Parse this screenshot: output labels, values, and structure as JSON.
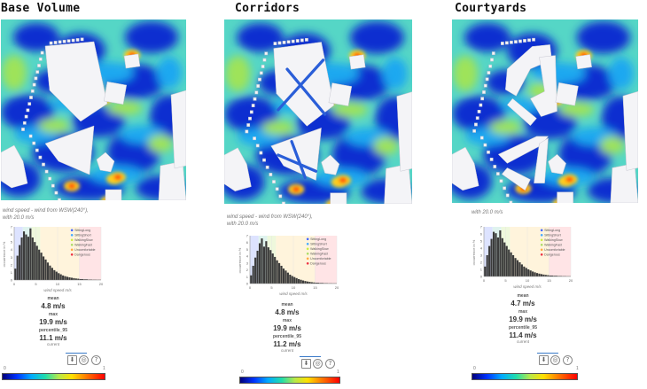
{
  "panels": [
    {
      "title": "Base Volume",
      "caption_line1": "wind speed - wind from WSW(240°),",
      "caption_line2": "with 20.0 m/s",
      "mean_label": "mean",
      "mean_value": "4.8 m/s",
      "max_label": "max",
      "max_value": "19.9 m/s",
      "pct_label": "percentile_95",
      "pct_value": "11.1 m/s",
      "pct_sub": "current",
      "cbar_min": "0",
      "cbar_max": "1"
    },
    {
      "title": "Corridors",
      "caption_line1": "wind speed - wind from WSW(240°),",
      "caption_line2": "with 20.0 m/s",
      "mean_label": "mean",
      "mean_value": "4.8 m/s",
      "max_label": "max",
      "max_value": "19.9 m/s",
      "pct_label": "percentile_95",
      "pct_value": "11.2 m/s",
      "pct_sub": "current",
      "cbar_min": "0",
      "cbar_max": "1"
    },
    {
      "title": "Courtyards",
      "caption_line1": "with 20.0 m/s",
      "caption_line2": "",
      "mean_label": "mean",
      "mean_value": "4.7 m/s",
      "max_label": "max",
      "max_value": "19.9 m/s",
      "pct_label": "percentile_95",
      "pct_value": "11.4 m/s",
      "pct_sub": "current",
      "cbar_min": "0",
      "cbar_max": "1"
    }
  ],
  "histogram": {
    "ylabel": "occurrence in %",
    "xlabel": "wind speed m/s",
    "xticks": [
      "0",
      "5",
      "10",
      "15",
      "20"
    ],
    "yticks": [
      "0",
      "1",
      "2",
      "3",
      "4",
      "5",
      "6",
      "7"
    ],
    "legend": [
      {
        "label": "SittingLong",
        "color": "#4466ff"
      },
      {
        "label": "SittingShort",
        "color": "#44aaff"
      },
      {
        "label": "WalkingSlow",
        "color": "#ccee44"
      },
      {
        "label": "WalkingFast",
        "color": "#aadd66"
      },
      {
        "label": "Uncomfortable",
        "color": "#ffaa44"
      },
      {
        "label": "Dangerous",
        "color": "#ee3344"
      }
    ]
  },
  "chart_data": [
    {
      "type": "bar",
      "title": "",
      "xlabel": "wind speed m/s",
      "ylabel": "occurrence in %",
      "xlim": [
        0,
        20
      ],
      "ylim": [
        0,
        7
      ],
      "x": [
        0.25,
        0.75,
        1.25,
        1.75,
        2.25,
        2.75,
        3.25,
        3.75,
        4.25,
        4.75,
        5.25,
        5.75,
        6.25,
        6.75,
        7.25,
        7.75,
        8.25,
        8.75,
        9.25,
        9.75,
        10.25,
        10.75,
        11.25,
        11.75,
        12.25,
        12.75,
        13.25,
        13.75,
        14.25,
        14.75,
        15.5,
        16.5,
        17.5,
        18.5,
        19.5
      ],
      "values": [
        1.5,
        3.2,
        4.6,
        5.6,
        6.4,
        6.0,
        5.7,
        6.8,
        5.6,
        5.0,
        4.5,
        4.0,
        3.6,
        3.1,
        2.7,
        2.3,
        1.9,
        1.6,
        1.3,
        1.1,
        0.9,
        0.75,
        0.6,
        0.5,
        0.42,
        0.35,
        0.3,
        0.25,
        0.2,
        0.17,
        0.12,
        0.09,
        0.06,
        0.04,
        0.03
      ]
    },
    {
      "type": "bar",
      "title": "",
      "xlabel": "wind speed m/s",
      "ylabel": "occurrence in %",
      "xlim": [
        0,
        20
      ],
      "ylim": [
        0,
        7
      ],
      "x": [
        0.25,
        0.75,
        1.25,
        1.75,
        2.25,
        2.75,
        3.25,
        3.75,
        4.25,
        4.75,
        5.25,
        5.75,
        6.25,
        6.75,
        7.25,
        7.75,
        8.25,
        8.75,
        9.25,
        9.75,
        10.25,
        10.75,
        11.25,
        11.75,
        12.25,
        12.75,
        13.25,
        13.75,
        14.25,
        14.75,
        15.5,
        16.5,
        17.5,
        18.5,
        19.5
      ],
      "values": [
        1.2,
        2.6,
        3.8,
        4.8,
        5.9,
        6.6,
        5.4,
        6.2,
        5.3,
        4.9,
        4.4,
        3.9,
        3.4,
        3.0,
        2.6,
        2.2,
        1.9,
        1.6,
        1.3,
        1.1,
        0.95,
        0.8,
        0.65,
        0.55,
        0.45,
        0.37,
        0.3,
        0.25,
        0.2,
        0.16,
        0.12,
        0.09,
        0.06,
        0.04,
        0.03
      ]
    },
    {
      "type": "bar",
      "title": "",
      "xlabel": "wind speed m/s",
      "ylabel": "occurrence in %",
      "xlim": [
        0,
        20
      ],
      "ylim": [
        0,
        7
      ],
      "x": [
        0.25,
        0.75,
        1.25,
        1.75,
        2.25,
        2.75,
        3.25,
        3.75,
        4.25,
        4.75,
        5.25,
        5.75,
        6.25,
        6.75,
        7.25,
        7.75,
        8.25,
        8.75,
        9.25,
        9.75,
        10.25,
        10.75,
        11.25,
        11.75,
        12.25,
        12.75,
        13.25,
        13.75,
        14.25,
        14.75,
        15.5,
        16.5,
        17.5,
        18.5,
        19.5
      ],
      "values": [
        1.4,
        3.0,
        4.3,
        5.3,
        6.3,
        6.1,
        5.5,
        6.5,
        5.4,
        4.8,
        4.3,
        3.8,
        3.4,
        3.0,
        2.6,
        2.3,
        2.0,
        1.7,
        1.4,
        1.2,
        1.0,
        0.85,
        0.7,
        0.58,
        0.48,
        0.4,
        0.33,
        0.27,
        0.22,
        0.18,
        0.13,
        0.1,
        0.07,
        0.05,
        0.03
      ]
    }
  ]
}
